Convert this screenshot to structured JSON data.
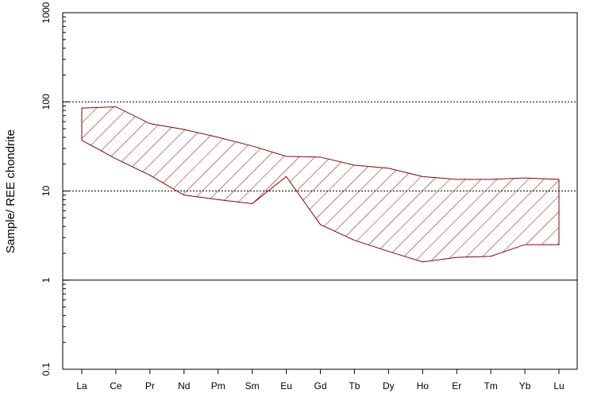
{
  "chart_data": {
    "type": "area",
    "title": "",
    "xlabel": "",
    "ylabel": "Sample/ REE chondrite",
    "y_scale": "log",
    "ylim": [
      0.1,
      1000
    ],
    "y_ticks": [
      0.1,
      1,
      10,
      100,
      1000
    ],
    "y_tick_labels": [
      "0.1",
      "1",
      "10",
      "100",
      "1000"
    ],
    "dotted_gridlines": [
      10,
      100
    ],
    "solid_reference_line": 1,
    "categories": [
      "La",
      "Ce",
      "Pr",
      "Nd",
      "Pm",
      "Sm",
      "Eu",
      "Gd",
      "Tb",
      "Dy",
      "Ho",
      "Er",
      "Tm",
      "Yb",
      "Lu"
    ],
    "series": [
      {
        "name": "",
        "upper": [
          85,
          88,
          57,
          49,
          40,
          32,
          24.5,
          24,
          19.5,
          18,
          14.5,
          13.5,
          13.5,
          14,
          13.5
        ],
        "lower": [
          37,
          23,
          15,
          9,
          8,
          7.2,
          14.5,
          4.2,
          2.8,
          2.1,
          1.6,
          1.8,
          1.85,
          2.5,
          2.5
        ]
      }
    ],
    "fill_style": "diagonal-hatch",
    "color": "#8b0000",
    "grid": false
  }
}
